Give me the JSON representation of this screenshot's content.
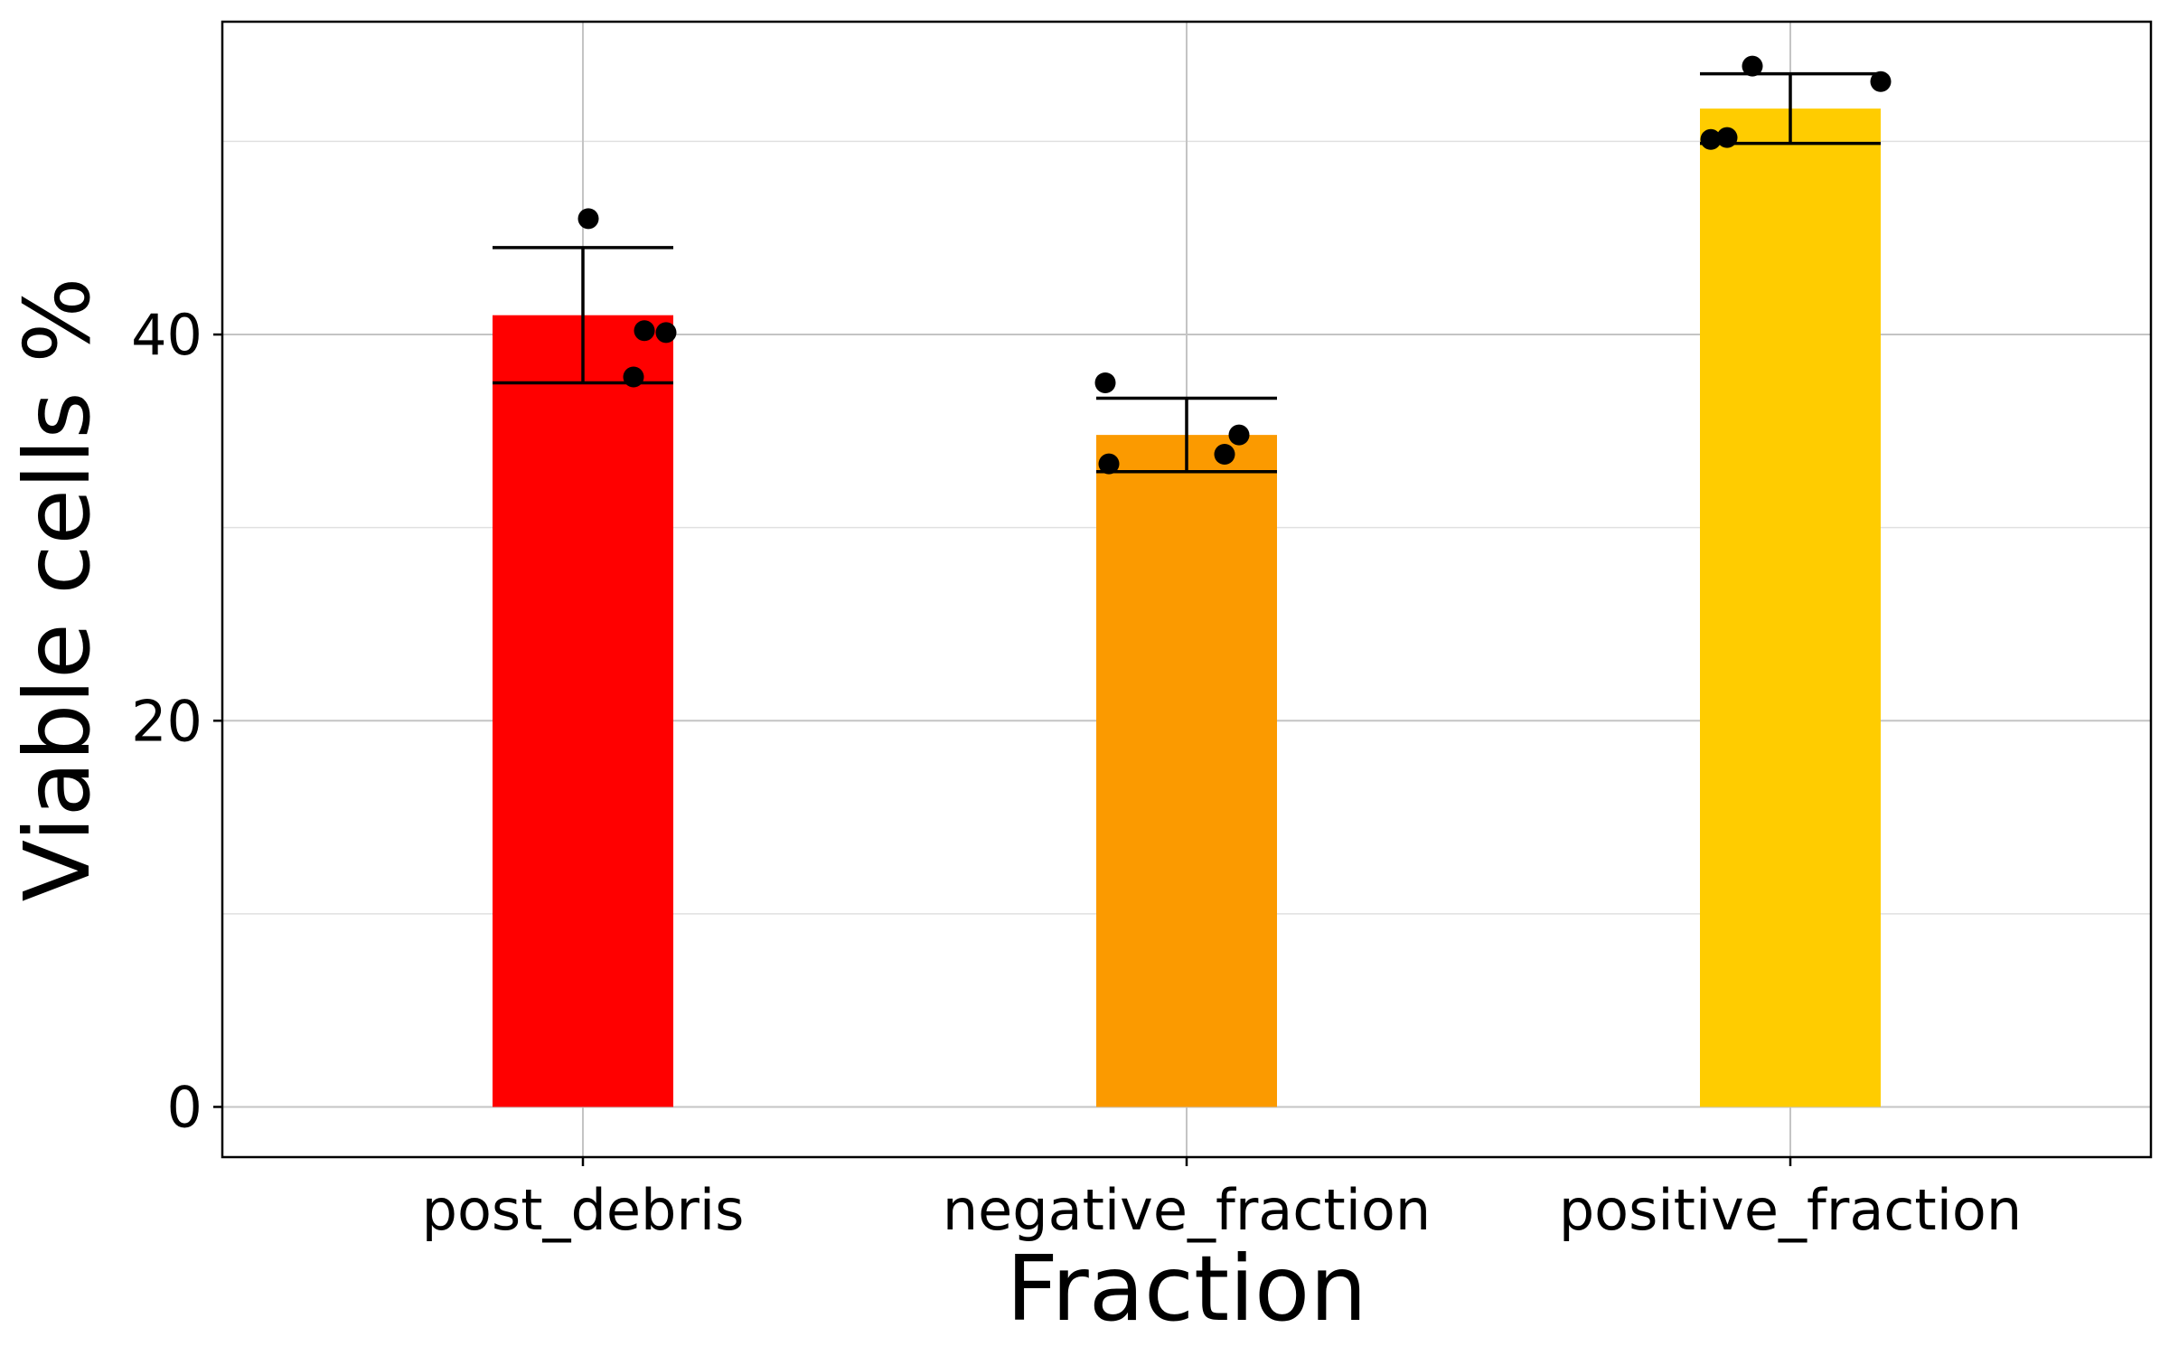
{
  "chart_data": {
    "type": "bar",
    "title": "",
    "xlabel": "Fraction",
    "ylabel": "Viable cells %",
    "categories": [
      "post_debris",
      "negative_fraction",
      "positive_fraction"
    ],
    "values": [
      41.0,
      34.8,
      51.7
    ],
    "error": [
      3.5,
      1.9,
      1.8
    ],
    "colors": [
      "#ff0000",
      "#fb9a00",
      "#ffcc00"
    ],
    "points": [
      [
        46.0,
        40.2,
        40.1,
        37.8
      ],
      [
        37.5,
        33.3,
        34.8,
        33.8
      ],
      [
        53.9,
        50.1,
        50.2,
        53.1
      ]
    ],
    "ylim": [
      -2.6,
      56.2
    ],
    "yticks": [
      0,
      20,
      40
    ],
    "yticks_minor": [
      10,
      30,
      50
    ],
    "grid": true,
    "legend": "none"
  }
}
